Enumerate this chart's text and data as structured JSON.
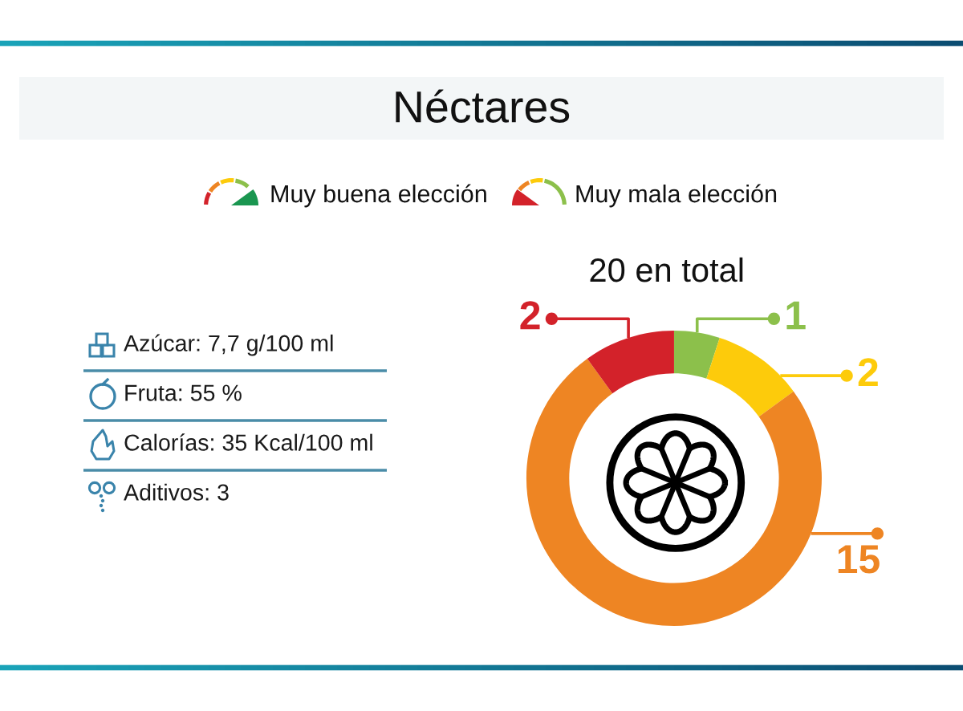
{
  "chart_data": [
    {
      "type": "other",
      "title": "Néctares",
      "annotations": [
        "Azúcar: 7,7 g/100 ml",
        "Fruta: 55 %",
        "Calorías: 35 Kcal/100 ml",
        "Aditivos: 3"
      ]
    },
    {
      "type": "donut",
      "title": "20 en total",
      "annotations": [
        "Muy buena elección",
        "Muy mala elección"
      ],
      "categories": [
        null,
        null,
        null,
        null
      ],
      "values": [
        1,
        2,
        15,
        2
      ],
      "colors": [
        "#8cc04b",
        "#fdcb0b",
        "#ee8523",
        "#d3222a"
      ],
      "data_labels": true
    }
  ]
}
